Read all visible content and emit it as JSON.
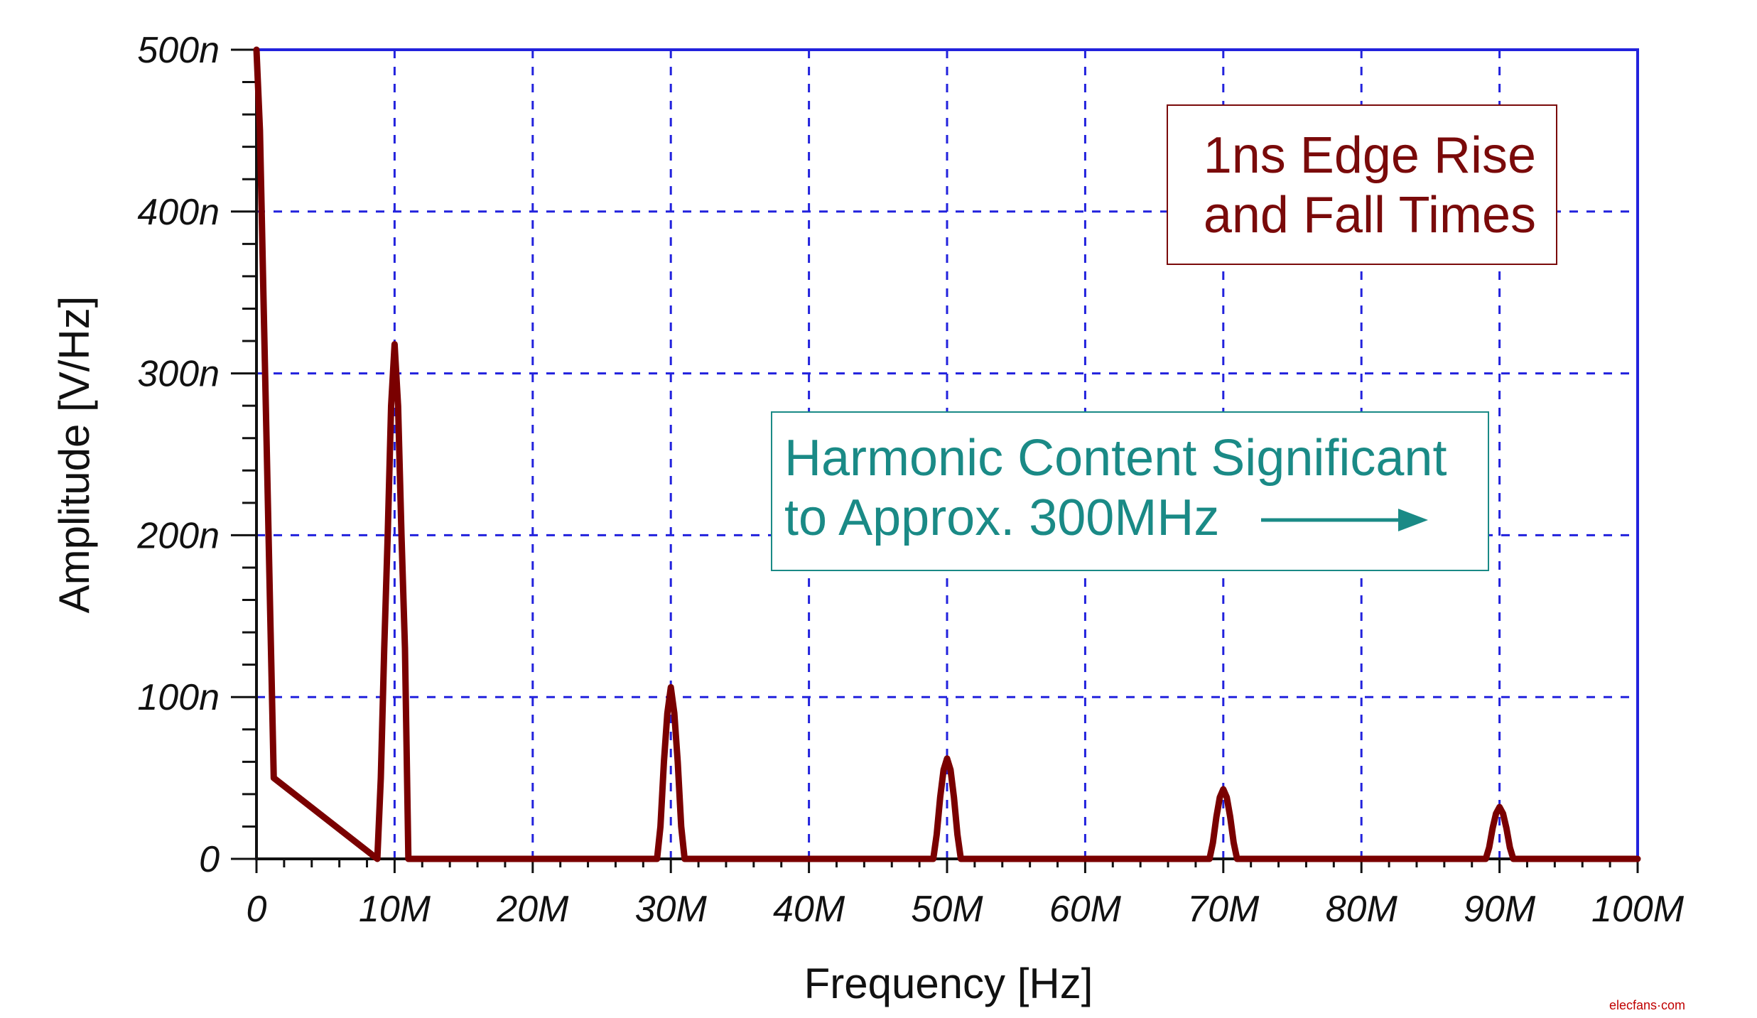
{
  "chart_data": {
    "type": "line",
    "xlabel": "Frequency [Hz]",
    "ylabel": "Amplitude [V/Hz]",
    "xlim": [
      0,
      100
    ],
    "ylim": [
      0,
      500
    ],
    "x_unit": "MHz",
    "y_unit": "nV/Hz",
    "x_ticks": [
      "0",
      "10M",
      "20M",
      "30M",
      "40M",
      "50M",
      "60M",
      "70M",
      "80M",
      "90M",
      "100M"
    ],
    "y_ticks": [
      "0",
      "100n",
      "200n",
      "300n",
      "400n",
      "500n"
    ],
    "grid": true,
    "series": [
      {
        "color": "#7a0000",
        "x": [
          0,
          0.25,
          0.5,
          0.75,
          1.0,
          1.25,
          8.75,
          9.0,
          9.25,
          9.5,
          9.75,
          10.0,
          10.25,
          10.5,
          10.75,
          11.0,
          29.0,
          29.25,
          29.5,
          29.75,
          30.0,
          30.25,
          30.5,
          30.75,
          31.0,
          49.0,
          49.25,
          49.5,
          49.75,
          50.0,
          50.25,
          50.5,
          50.75,
          51.0,
          69.0,
          69.25,
          69.5,
          69.75,
          70.0,
          70.25,
          70.5,
          70.75,
          71.0,
          89.0,
          89.25,
          89.5,
          89.75,
          90.0,
          90.25,
          90.5,
          90.75,
          91.0,
          100
        ],
        "y": [
          500,
          450,
          350,
          250,
          150,
          50,
          0,
          50,
          130,
          200,
          280,
          318,
          280,
          200,
          130,
          0,
          0,
          20,
          60,
          90,
          106,
          90,
          60,
          20,
          0,
          0,
          15,
          38,
          55,
          62,
          55,
          38,
          15,
          0,
          0,
          10,
          26,
          38,
          43,
          38,
          26,
          10,
          0,
          0,
          7,
          19,
          28,
          32,
          28,
          19,
          7,
          0,
          0
        ]
      }
    ],
    "annotations": [
      {
        "lines": [
          "1ns Edge Rise",
          "and Fall Times"
        ],
        "color": "#7a0a0a"
      },
      {
        "lines": [
          "Harmonic Content Significant",
          "to Approx. 300MHz"
        ],
        "color": "#1a8a86"
      }
    ]
  },
  "watermark": "elecfans·com"
}
